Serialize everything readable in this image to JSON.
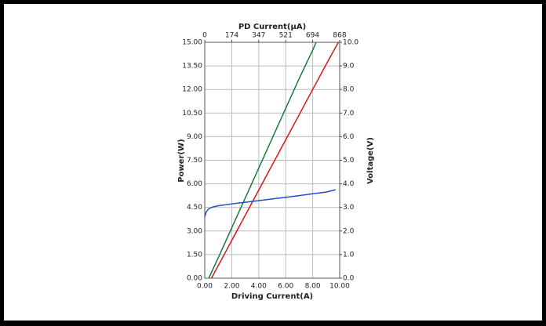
{
  "chart_data": {
    "type": "line",
    "x_label": "Driving Current(A)",
    "x2_label": "PD Current(μA)",
    "y_label": "Power(W)",
    "y2_label": "Voltage(V)",
    "xlim": [
      0,
      10
    ],
    "xticks": [
      {
        "value": 0,
        "label": "0.00"
      },
      {
        "value": 2,
        "label": "2.00"
      },
      {
        "value": 4,
        "label": "4.00"
      },
      {
        "value": 6,
        "label": "6.00"
      },
      {
        "value": 8,
        "label": "8.00"
      },
      {
        "value": 10,
        "label": "10.00"
      }
    ],
    "x2lim": [
      0,
      868
    ],
    "x2ticks": [
      0,
      174,
      347,
      521,
      694,
      868
    ],
    "ylim": [
      0,
      15
    ],
    "yticks": [
      {
        "value": 0,
        "label": "0.00"
      },
      {
        "value": 1.5,
        "label": "1.50"
      },
      {
        "value": 3,
        "label": "3.00"
      },
      {
        "value": 4.5,
        "label": "4.50"
      },
      {
        "value": 6,
        "label": "6.00"
      },
      {
        "value": 7.5,
        "label": "7.50"
      },
      {
        "value": 9,
        "label": "9.00"
      },
      {
        "value": 10.5,
        "label": "10.50"
      },
      {
        "value": 12,
        "label": "12.00"
      },
      {
        "value": 13.5,
        "label": "13.50"
      },
      {
        "value": 15,
        "label": "15.00"
      }
    ],
    "y2lim": [
      0,
      10
    ],
    "y2ticks": [
      {
        "value": 0,
        "label": "0.0"
      },
      {
        "value": 1,
        "label": "1.0"
      },
      {
        "value": 2,
        "label": "2.0"
      },
      {
        "value": 3,
        "label": "3.0"
      },
      {
        "value": 4,
        "label": "4.0"
      },
      {
        "value": 5,
        "label": "5.0"
      },
      {
        "value": 6,
        "label": "6.0"
      },
      {
        "value": 7,
        "label": "7.0"
      },
      {
        "value": 8,
        "label": "8.0"
      },
      {
        "value": 9,
        "label": "9.0"
      },
      {
        "value": 10,
        "label": "10.0"
      }
    ],
    "grid": true,
    "series": [
      {
        "color": "#1a7a3a",
        "x": [
          0.3,
          1,
          2,
          3,
          4,
          5,
          6,
          7,
          8,
          8.25
        ],
        "values": [
          0,
          1.3,
          3.2,
          5.1,
          7.0,
          8.9,
          10.8,
          12.7,
          14.5,
          15
        ]
      },
      {
        "color": "#d01818",
        "x": [
          0.5,
          1,
          2,
          3,
          4,
          5,
          6,
          7,
          8,
          9,
          9.9
        ],
        "values": [
          0,
          0.8,
          2.4,
          4.0,
          5.6,
          7.2,
          8.8,
          10.4,
          12.0,
          13.6,
          15
        ]
      },
      {
        "color": "#1a4fd0",
        "axis": "y2",
        "x": [
          0,
          0.1,
          0.3,
          0.6,
          1,
          2,
          3,
          4,
          5,
          6,
          7,
          8,
          9,
          9.7
        ],
        "values": [
          2.6,
          2.8,
          2.95,
          3.02,
          3.07,
          3.15,
          3.22,
          3.29,
          3.36,
          3.43,
          3.5,
          3.58,
          3.65,
          3.75
        ]
      }
    ]
  }
}
